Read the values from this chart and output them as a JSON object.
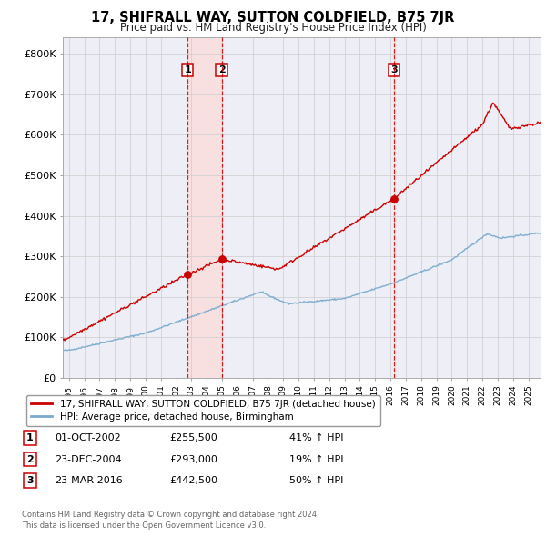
{
  "title": "17, SHIFRALL WAY, SUTTON COLDFIELD, B75 7JR",
  "subtitle": "Price paid vs. HM Land Registry's House Price Index (HPI)",
  "ylabel_ticks": [
    "£0",
    "£100K",
    "£200K",
    "£300K",
    "£400K",
    "£500K",
    "£600K",
    "£700K",
    "£800K"
  ],
  "ytick_values": [
    0,
    100000,
    200000,
    300000,
    400000,
    500000,
    600000,
    700000,
    800000
  ],
  "ylim": [
    0,
    840000
  ],
  "xlim_start": 1994.6,
  "xlim_end": 2025.8,
  "sale_dates": [
    2002.75,
    2004.98,
    2016.23
  ],
  "sale_prices": [
    255500,
    293000,
    442500
  ],
  "sale_labels": [
    "1",
    "2",
    "3"
  ],
  "sale_date_strs": [
    "01-OCT-2002",
    "23-DEC-2004",
    "23-MAR-2016"
  ],
  "sale_price_strs": [
    "£255,500",
    "£293,000",
    "£442,500"
  ],
  "sale_pct_strs": [
    "41% ↑ HPI",
    "19% ↑ HPI",
    "50% ↑ HPI"
  ],
  "legend_house": "17, SHIFRALL WAY, SUTTON COLDFIELD, B75 7JR (detached house)",
  "legend_hpi": "HPI: Average price, detached house, Birmingham",
  "footer1": "Contains HM Land Registry data © Crown copyright and database right 2024.",
  "footer2": "This data is licensed under the Open Government Licence v3.0.",
  "house_color": "#cc0000",
  "hpi_color": "#7aabcc",
  "vline_color": "#cc0000",
  "shade_color": "#f8e0e0",
  "background_color": "#ffffff",
  "plot_bg_color": "#eeeef6",
  "grid_color": "#cccccc",
  "label_box_color": "#cc0000"
}
